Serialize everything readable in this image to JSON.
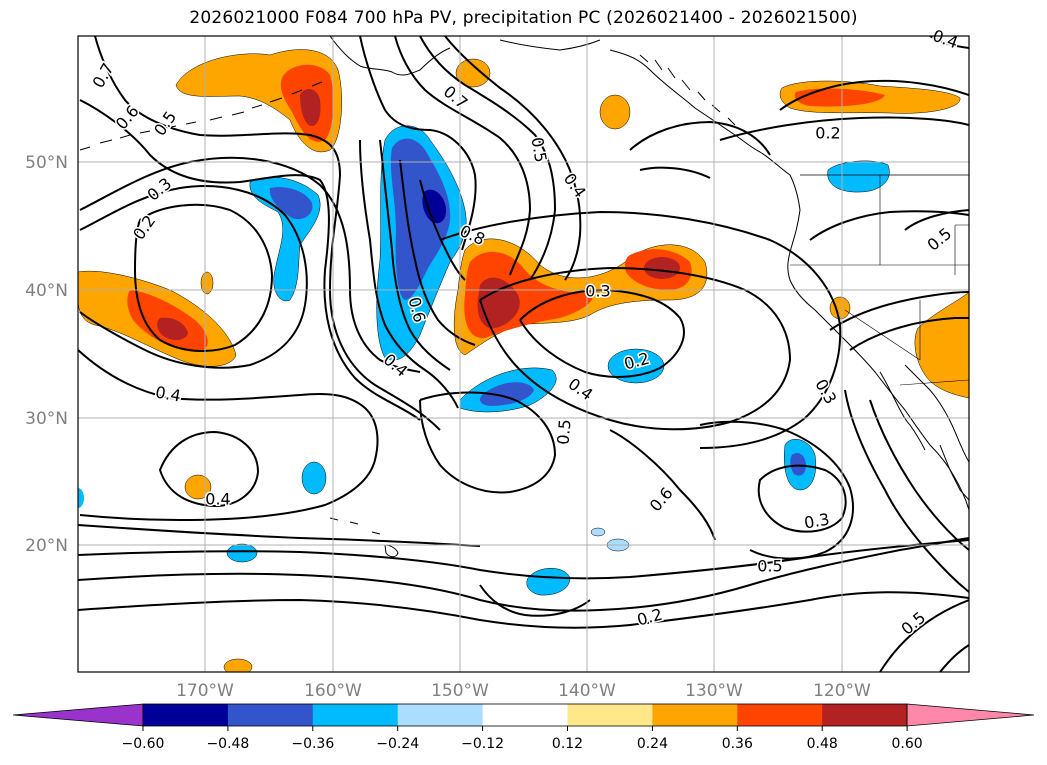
{
  "title": "2026021000 F084 700 hPa PV, precipitation PC (2026021400 - 2026021500)",
  "latitude_labels": [
    "50°N",
    "40°N",
    "30°N",
    "20°N"
  ],
  "longitude_labels": [
    "170°W",
    "160°W",
    "150°W",
    "140°W",
    "130°W",
    "120°W"
  ],
  "contour_labels": [
    "0.7",
    "0.6",
    "0.5",
    "0.3",
    "0.2",
    "0.4",
    "0.7",
    "0.5",
    "0.4",
    "0.8",
    "0.6",
    "0.4",
    "0.3",
    "0.4",
    "0.5",
    "0.2",
    "0.3",
    "0.5",
    "0.4",
    "0.6",
    "0.3",
    "0.2",
    "0.2",
    "0.5",
    "0.4",
    "0.5"
  ],
  "colorbar": {
    "ticks": [
      "−0.60",
      "−0.48",
      "−0.36",
      "−0.24",
      "−0.12",
      "0.12",
      "0.24",
      "0.36",
      "0.48",
      "0.60"
    ],
    "colors": [
      "#9933cc",
      "#000099",
      "#3355cc",
      "#00bbff",
      "#aaddff",
      "#ffffff",
      "#ffe88a",
      "#ffa500",
      "#ff4400",
      "#b22222",
      "#ff88aa"
    ]
  },
  "colors": {
    "neg_light": "#aaddff",
    "neg_mid": "#00bbff",
    "neg_strong": "#3355cc",
    "neg_max": "#000099",
    "pos_light": "#ffe88a",
    "pos_mid": "#ffa500",
    "pos_strong": "#ff4400",
    "pos_max": "#b22222"
  }
}
